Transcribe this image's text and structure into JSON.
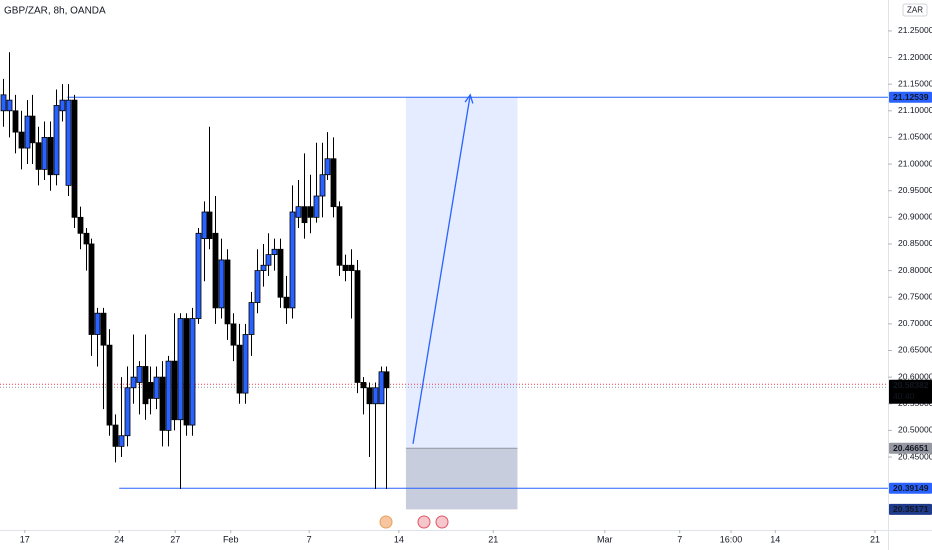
{
  "chart_data": {
    "type": "candlestick",
    "title": "GBP/ZAR, 8h, OANDA",
    "currency": "ZAR",
    "up_color": "#2962ff",
    "down_color": "#000000",
    "open": [
      21.1,
      21.1,
      21.1,
      21.06,
      21.03,
      21.09,
      21.04,
      20.99,
      21.05,
      20.98,
      21.1,
      20.96,
      21.12,
      20.9,
      20.87,
      20.85,
      20.68,
      20.72,
      20.66,
      20.51,
      20.47,
      20.49,
      20.58,
      20.59,
      20.62,
      20.59,
      20.56,
      20.6,
      20.5,
      20.63,
      20.52,
      20.71,
      20.51,
      20.71,
      20.86,
      20.91,
      20.87,
      20.73,
      20.82,
      20.7,
      20.66,
      20.57,
      20.68,
      20.74,
      20.8,
      20.81,
      20.83,
      20.84,
      20.75,
      20.73,
      20.9,
      20.92,
      20.92,
      20.9,
      20.94,
      20.98,
      21.01,
      20.92,
      20.81,
      20.81,
      20.8,
      20.59,
      20.58,
      20.55,
      20.55,
      20.61
    ],
    "high": [
      21.16,
      21.21,
      21.13,
      21.1,
      21.12,
      21.13,
      21.07,
      21.08,
      21.08,
      21.14,
      21.15,
      21.15,
      21.13,
      20.92,
      20.88,
      20.86,
      20.73,
      20.73,
      20.69,
      20.53,
      20.6,
      20.62,
      20.68,
      20.63,
      20.68,
      20.62,
      20.62,
      20.63,
      20.64,
      20.72,
      20.72,
      20.72,
      20.73,
      20.88,
      20.93,
      21.07,
      20.94,
      20.86,
      20.84,
      20.72,
      20.7,
      20.7,
      20.76,
      20.84,
      20.85,
      20.87,
      20.86,
      20.86,
      20.79,
      20.96,
      20.97,
      21.02,
      20.98,
      21.04,
      21.04,
      21.06,
      21.05,
      20.93,
      20.83,
      20.84,
      20.82,
      20.6,
      20.59,
      20.59,
      20.62,
      20.62
    ],
    "low": [
      21.07,
      21.05,
      21.02,
      20.99,
      21.0,
      21.0,
      20.96,
      20.97,
      20.95,
      20.96,
      21.08,
      20.94,
      20.88,
      20.84,
      20.8,
      20.64,
      20.62,
      20.54,
      20.49,
      20.44,
      20.45,
      20.47,
      20.55,
      20.53,
      20.52,
      20.53,
      20.54,
      20.47,
      20.47,
      20.5,
      20.39,
      20.49,
      20.49,
      20.7,
      20.78,
      20.84,
      20.7,
      20.71,
      20.67,
      20.63,
      20.55,
      20.55,
      20.64,
      20.72,
      20.77,
      20.79,
      20.8,
      20.73,
      20.7,
      20.71,
      20.88,
      20.86,
      20.87,
      20.89,
      20.9,
      20.97,
      20.9,
      20.79,
      20.78,
      20.71,
      20.57,
      20.53,
      20.45,
      20.39,
      20.55,
      20.39
    ],
    "close": [
      21.13,
      21.12,
      21.06,
      21.03,
      21.09,
      21.04,
      20.99,
      21.05,
      20.98,
      21.11,
      21.12,
      21.12,
      20.9,
      20.87,
      20.85,
      20.68,
      20.72,
      20.66,
      20.51,
      20.47,
      20.49,
      20.58,
      20.6,
      20.62,
      20.55,
      20.56,
      20.6,
      20.5,
      20.63,
      20.52,
      20.71,
      20.51,
      20.71,
      20.87,
      20.91,
      20.86,
      20.73,
      20.82,
      20.7,
      20.66,
      20.57,
      20.68,
      20.74,
      20.8,
      20.81,
      20.83,
      20.84,
      20.75,
      20.73,
      20.91,
      20.92,
      20.89,
      20.9,
      20.94,
      20.98,
      21.01,
      20.92,
      20.81,
      20.8,
      20.8,
      20.59,
      20.58,
      20.55,
      20.58,
      20.61,
      20.58
    ],
    "xlim": [
      -0.5,
      150
    ],
    "ylim": [
      20.313,
      21.308
    ],
    "xticks": [
      {
        "value": 3.7,
        "label": "17"
      },
      {
        "value": 19.7,
        "label": "24"
      },
      {
        "value": 29.2,
        "label": "27"
      },
      {
        "value": 38.6,
        "label": "Feb"
      },
      {
        "value": 51.9,
        "label": "7"
      },
      {
        "value": 67.1,
        "label": "14"
      },
      {
        "value": 83.1,
        "label": "21"
      },
      {
        "value": 102,
        "label": "Mar"
      },
      {
        "value": 114.7,
        "label": "7"
      },
      {
        "value": 123.4,
        "label": "16:00"
      },
      {
        "value": 130.9,
        "label": "14"
      },
      {
        "value": 147.8,
        "label": "21"
      }
    ],
    "yticks": [
      {
        "value": 20.45,
        "label": "20.45000"
      },
      {
        "value": 20.5,
        "label": "20.50000"
      },
      {
        "value": 20.55,
        "label": "20.55000"
      },
      {
        "value": 20.6,
        "label": "20.60000"
      },
      {
        "value": 20.65,
        "label": "20.65000"
      },
      {
        "value": 20.7,
        "label": "20.70000"
      },
      {
        "value": 20.75,
        "label": "20.75000"
      },
      {
        "value": 20.8,
        "label": "20.80000"
      },
      {
        "value": 20.85,
        "label": "20.85000"
      },
      {
        "value": 20.9,
        "label": "20.90000"
      },
      {
        "value": 20.95,
        "label": "20.95000"
      },
      {
        "value": 21,
        "label": "21.00000"
      },
      {
        "value": 21.05,
        "label": "21.05000"
      },
      {
        "value": 21.1,
        "label": "21.10000"
      },
      {
        "value": 21.15,
        "label": "21.15000"
      },
      {
        "value": 21.2,
        "label": "21.20000"
      },
      {
        "value": 21.25,
        "label": "21.25000"
      }
    ],
    "grid": false,
    "last_price": {
      "value": 20.58382,
      "label": "20.58382",
      "countdown": "40:40"
    },
    "resistance": {
      "value": 21.12539,
      "label": "21.12539",
      "x_start": 10.9
    },
    "support": {
      "value": 20.39149,
      "label": "20.39149",
      "x_start": 19.7
    },
    "position": {
      "x": [
        68.3,
        87.2
      ],
      "target": {
        "value": 21.12539,
        "label": "21.12539"
      },
      "entry": {
        "value": 20.46651,
        "label": "20.46651"
      },
      "stop": {
        "value": 20.35171,
        "label": "20.35171"
      }
    },
    "arrow": {
      "x": [
        69.5,
        79.2
      ],
      "y": [
        20.475,
        21.13
      ]
    }
  }
}
